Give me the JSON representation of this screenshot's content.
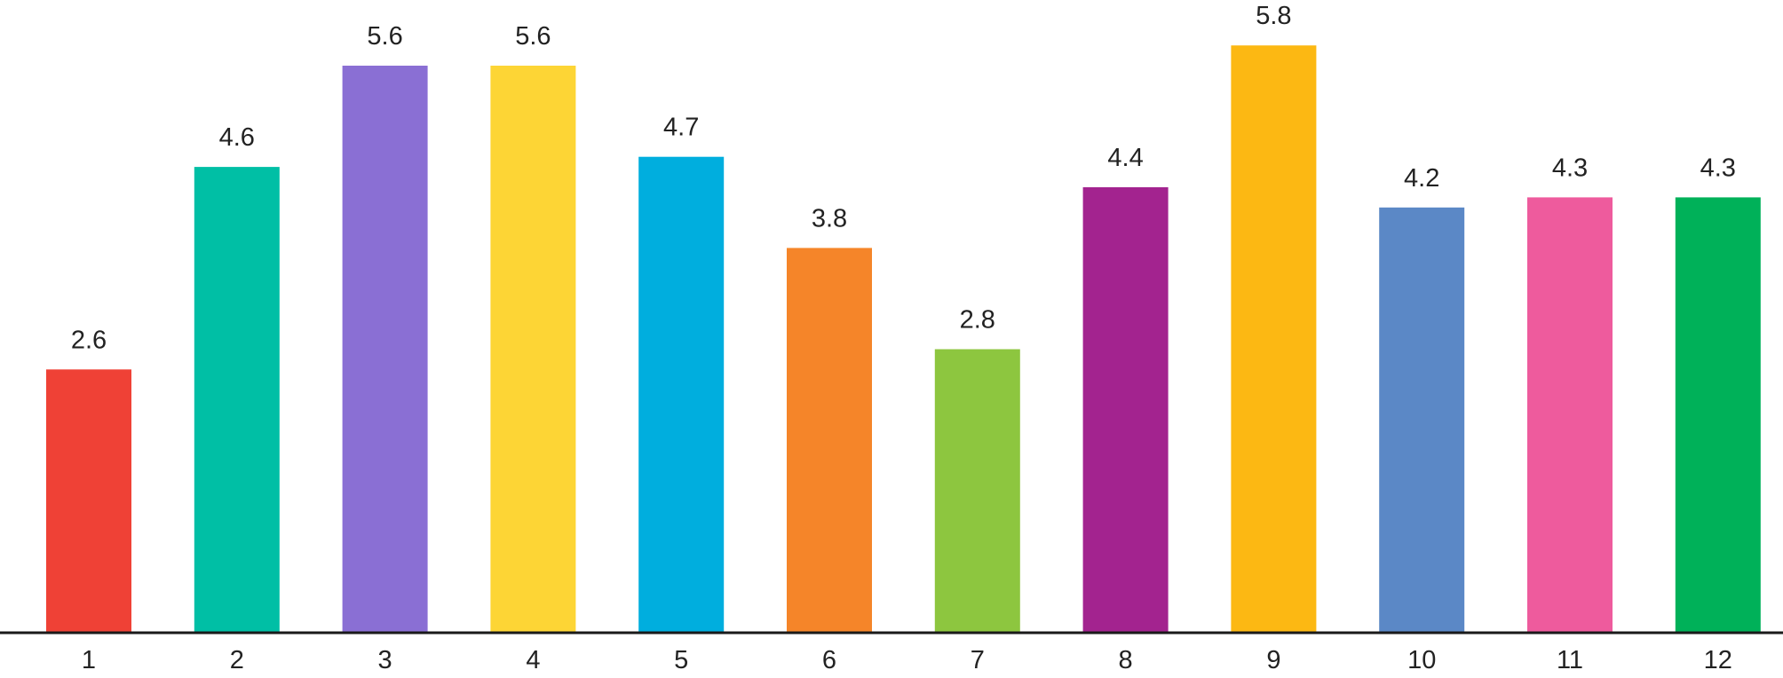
{
  "chart_data": {
    "type": "bar",
    "categories": [
      "1",
      "2",
      "3",
      "4",
      "5",
      "6",
      "7",
      "8",
      "9",
      "10",
      "11",
      "12"
    ],
    "values": [
      2.6,
      4.6,
      5.6,
      5.6,
      4.7,
      3.8,
      2.8,
      4.4,
      5.8,
      4.2,
      4.3,
      4.3
    ],
    "data_labels": [
      "2.6",
      "4.6",
      "5.6",
      "5.6",
      "4.7",
      "3.8",
      "2.8",
      "4.4",
      "5.8",
      "4.2",
      "4.3",
      "4.3"
    ],
    "colors": [
      "#ef4136",
      "#00bfa5",
      "#8a6fd4",
      "#fdd535",
      "#00aede",
      "#f58529",
      "#8dc63f",
      "#a3238f",
      "#fcb813",
      "#5b88c6",
      "#ee5b9d",
      "#00b159"
    ],
    "title": "",
    "xlabel": "",
    "ylabel": "",
    "ylim": [
      0,
      6
    ],
    "grid": false,
    "legend": "none",
    "axis_color": "#1a1a1a",
    "text_color": "#222222"
  }
}
